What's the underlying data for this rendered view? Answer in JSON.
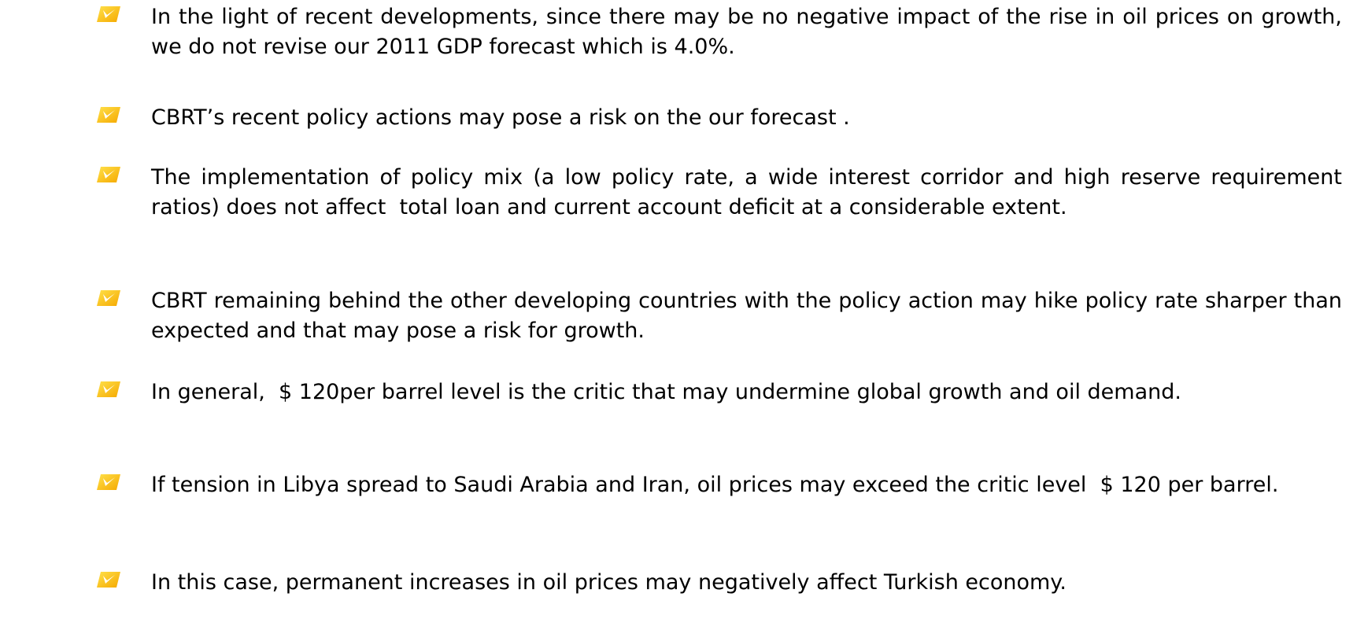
{
  "bullets": [
    "In the light of recent developments, since there may be no negative impact of the rise in oil prices on growth, we do not revise our 2011 GDP forecast which is 4.0%.",
    "CBRT’s recent policy actions may pose a risk on the our forecast .",
    "The implementation of policy mix (a low policy rate, a wide interest corridor and high reserve requirement ratios) does not affect  total loan and current account deficit at a considerable extent.",
    "CBRT remaining behind the other developing countries with the policy action may hike policy rate sharper than expected and that may pose a risk for growth.",
    "In general,  $ 120per barrel level is the critic that may undermine global growth and oil demand.",
    "If tension in Libya spread to Saudi Arabia and Iran, oil prices may exceed the critic level  $ 120 per barrel.",
    "In this case, permanent increases in oil prices may negatively affect Turkish economy."
  ]
}
